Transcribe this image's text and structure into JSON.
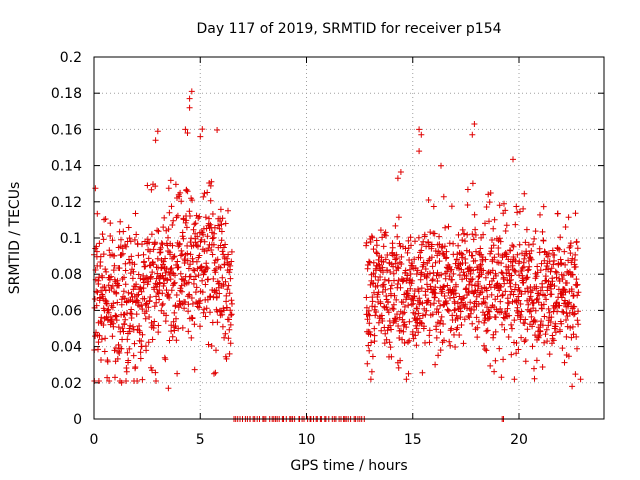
{
  "chart_data": {
    "type": "scatter",
    "title": "Day 117 of 2019, SRMTID for receiver p154",
    "xlabel": "GPS time / hours",
    "ylabel": "SRMTID / TECUs",
    "xlim": [
      0,
      24
    ],
    "ylim": [
      0,
      0.2
    ],
    "xticks": [
      0,
      5,
      10,
      15,
      20
    ],
    "xtick_labels": [
      "0",
      "5",
      "10",
      "15",
      "20"
    ],
    "yticks": [
      0,
      0.02,
      0.04,
      0.06,
      0.08,
      0.1,
      0.12,
      0.14,
      0.16,
      0.18,
      0.2
    ],
    "ytick_labels": [
      "0",
      "0.02",
      "0.04",
      "0.06",
      "0.08",
      "0.1",
      "0.12",
      "0.14",
      "0.16",
      "0.18",
      "0.2"
    ],
    "grid": true,
    "marker": "+",
    "color": "#e00000",
    "series": [
      {
        "name": "SRMTID",
        "segments": [
          {
            "x_start": 0.0,
            "x_end": 6.5,
            "baseline": 0.065,
            "rise": 0.025,
            "peak_at": 4.5,
            "spread": 0.022,
            "min": 0.017,
            "max": 0.182,
            "count": 720
          },
          {
            "x_start": 6.5,
            "x_end": 12.8,
            "value": 0.0,
            "count": 60
          },
          {
            "x_start": 19.2,
            "x_end": 19.3,
            "value": 0.0,
            "count": 2
          },
          {
            "x_start": 12.8,
            "x_end": 22.8,
            "baseline": 0.07,
            "rise": 0.01,
            "peak_at": 17.5,
            "spread": 0.02,
            "min": 0.018,
            "max": 0.163,
            "count": 1100
          }
        ],
        "outliers": [
          {
            "x": 4.6,
            "y": 0.181
          },
          {
            "x": 4.5,
            "y": 0.177
          },
          {
            "x": 4.5,
            "y": 0.172
          },
          {
            "x": 4.3,
            "y": 0.16
          },
          {
            "x": 4.4,
            "y": 0.158
          },
          {
            "x": 3.0,
            "y": 0.159
          },
          {
            "x": 2.9,
            "y": 0.154
          },
          {
            "x": 5.0,
            "y": 0.156
          },
          {
            "x": 15.3,
            "y": 0.16
          },
          {
            "x": 15.4,
            "y": 0.157
          },
          {
            "x": 15.3,
            "y": 0.148
          },
          {
            "x": 17.9,
            "y": 0.163
          },
          {
            "x": 17.8,
            "y": 0.157
          },
          {
            "x": 3.5,
            "y": 0.017
          },
          {
            "x": 1.3,
            "y": 0.02
          },
          {
            "x": 14.7,
            "y": 0.022
          },
          {
            "x": 14.8,
            "y": 0.025
          },
          {
            "x": 22.5,
            "y": 0.018
          },
          {
            "x": 22.9,
            "y": 0.022
          },
          {
            "x": 14.3,
            "y": 0.133
          }
        ]
      }
    ]
  }
}
